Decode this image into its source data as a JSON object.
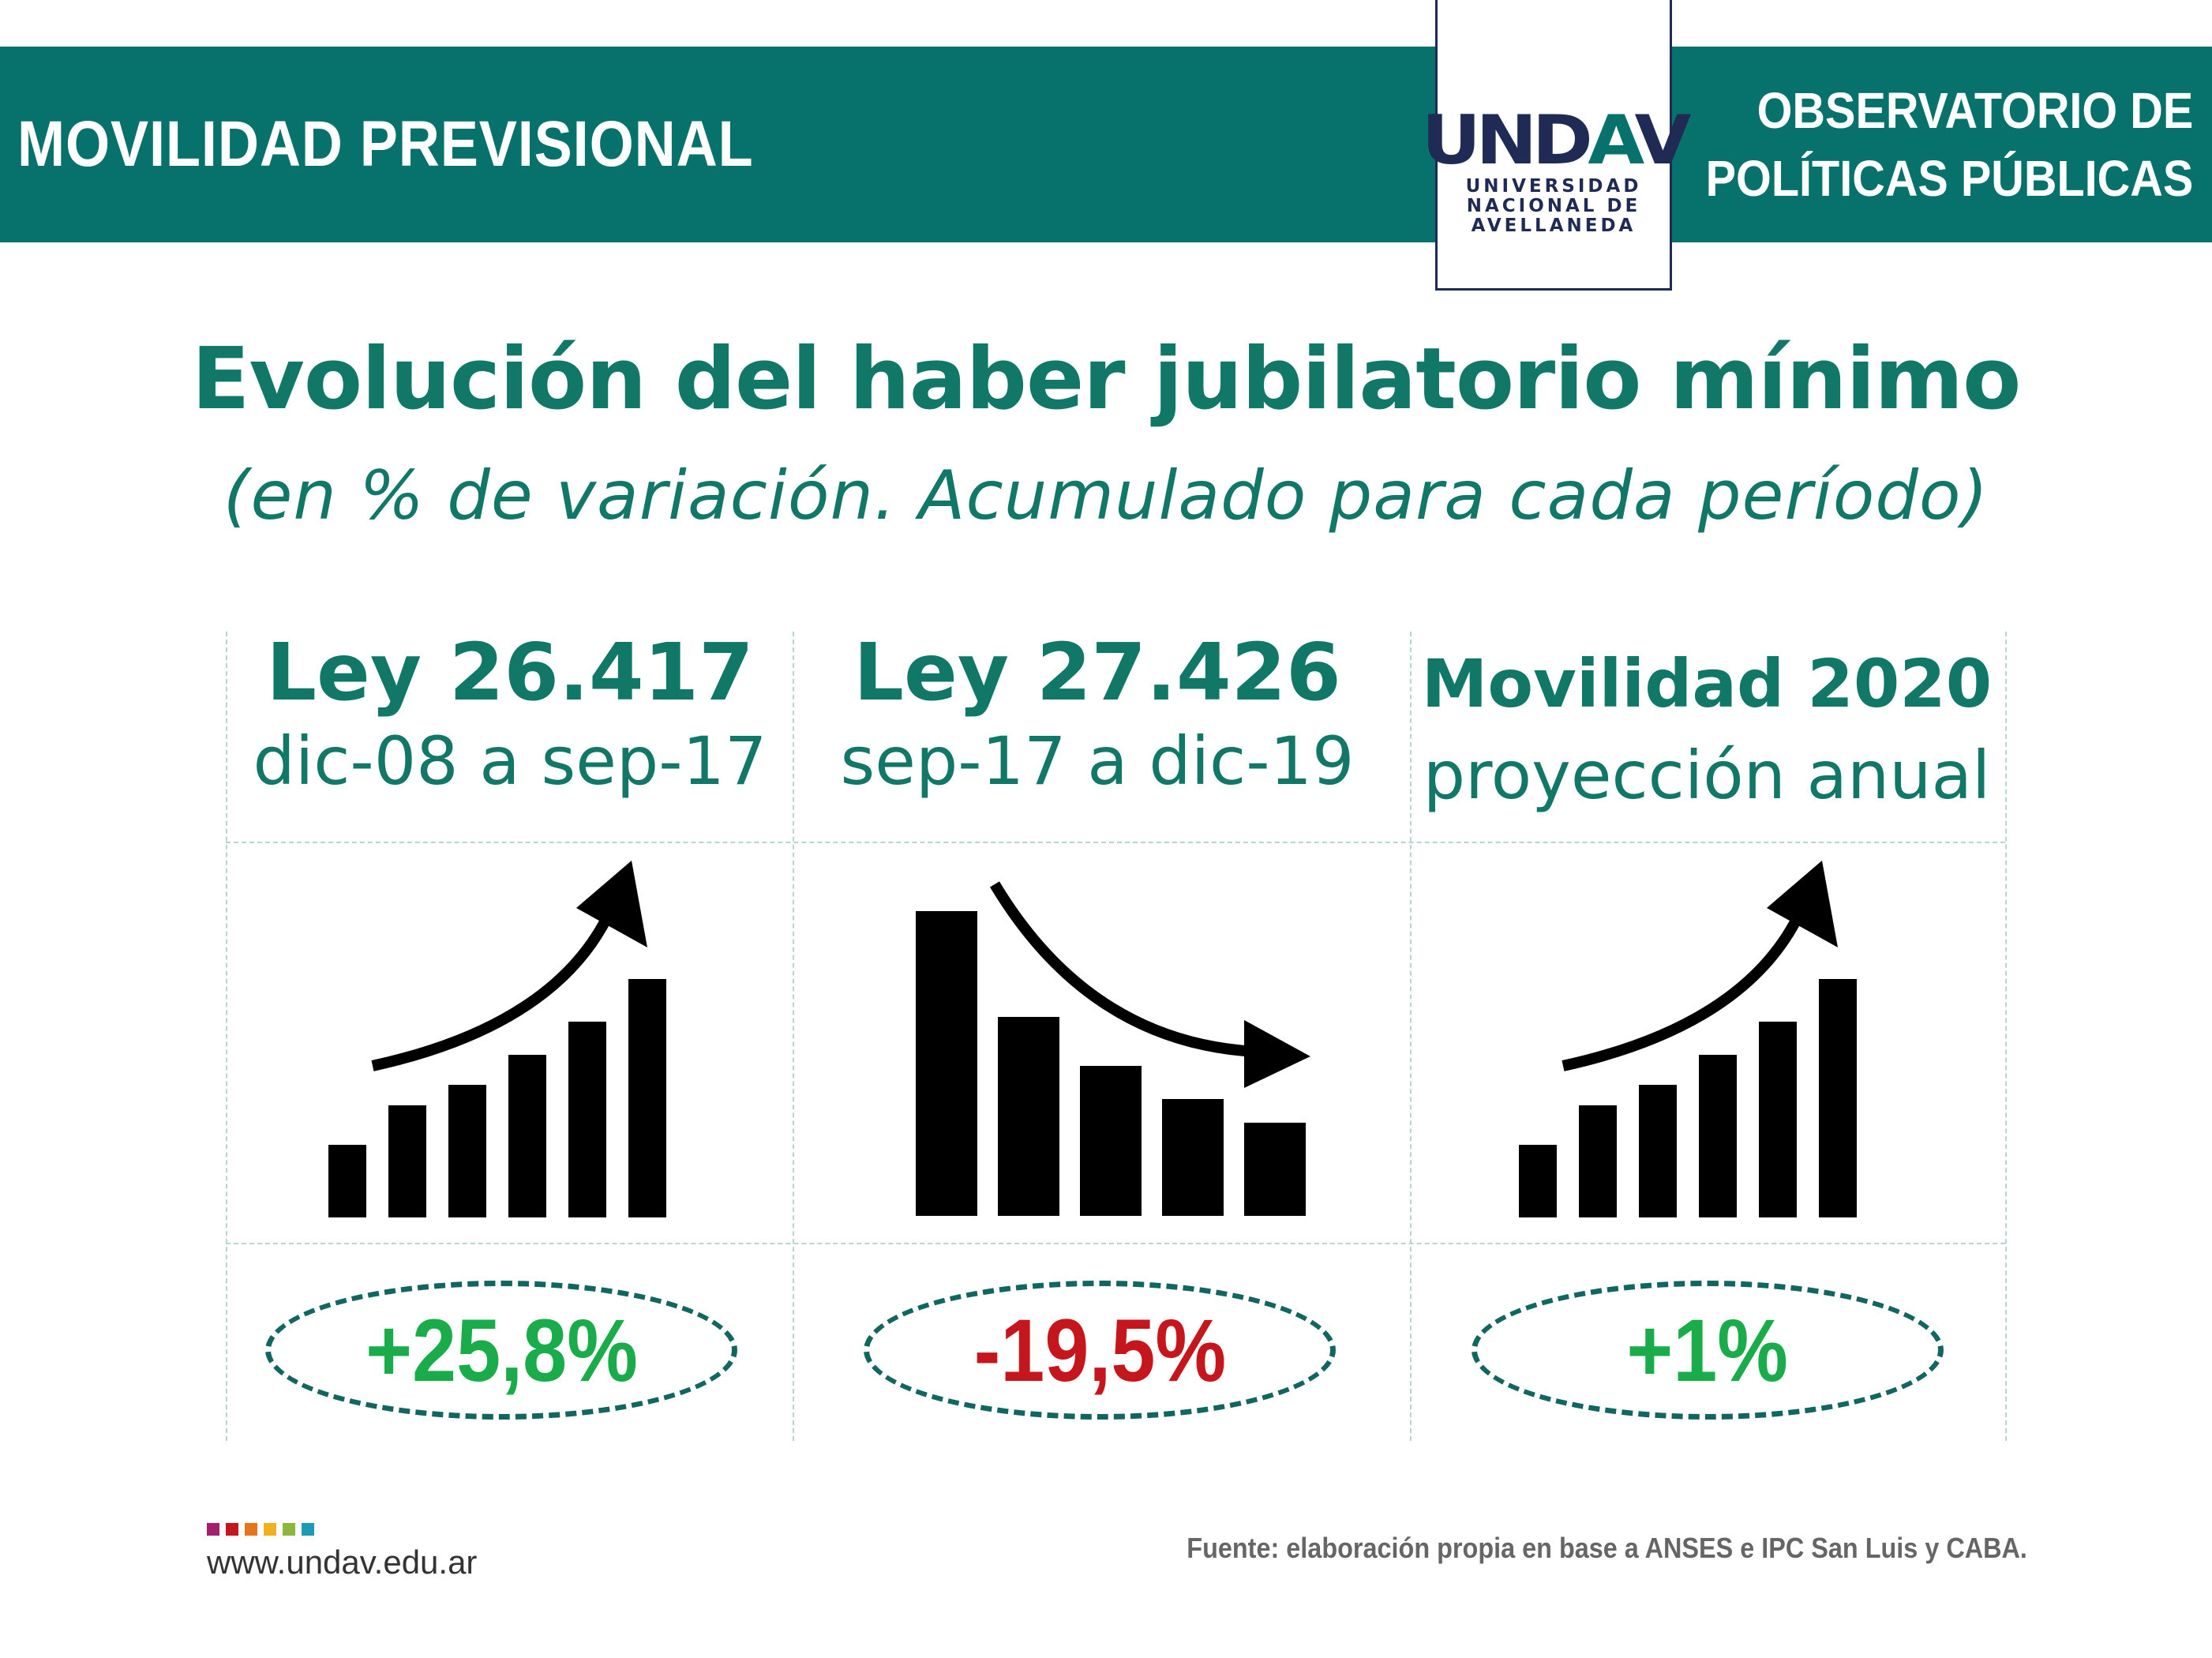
{
  "header": {
    "left_title": "MOVILIDAD PREVISIONAL",
    "right_line1": "OBSERVATORIO DE",
    "right_line2": "POLÍTICAS PÚBLICAS",
    "band_color": "#07726c"
  },
  "logo": {
    "wordmark": "UNDAV",
    "line1": "UNIVERSIDAD",
    "line2": "NACIONAL DE",
    "line3": "AVELLANEDA"
  },
  "chart_data": {
    "type": "table",
    "title": "Evolución del haber jubilatorio mínimo",
    "subtitle": "(en % de variación. Acumulado para cada período)",
    "columns": [
      {
        "label": "Ley 26.417",
        "period": "dic-08 a sep-17",
        "value": 25.8,
        "value_label": "+25,8%",
        "trend": "up",
        "color": "#1aab4b"
      },
      {
        "label": "Ley 27.426",
        "period": "sep-17 a dic-19",
        "value": -19.5,
        "value_label": "-19,5%",
        "trend": "down",
        "color": "#c4161c"
      },
      {
        "label": "Movilidad 2020",
        "period": "proyección anual",
        "value": 1,
        "value_label": "+1%",
        "trend": "up",
        "color": "#1aab4b"
      }
    ]
  },
  "footer": {
    "website": "www.undav.edu.ar",
    "source": "Fuente: elaboración propia en base a ANSES e IPC San Luis y CABA.",
    "dot_colors": [
      "#a3206f",
      "#c4161c",
      "#e8731d",
      "#f2b01e",
      "#8cb63c",
      "#1e9bb4"
    ]
  }
}
